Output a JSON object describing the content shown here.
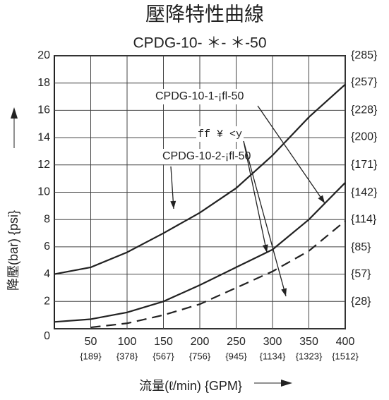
{
  "chart_data": {
    "type": "line",
    "title": "壓降特性曲線",
    "subtitle": "CPDG-10- ＊- ＊-50",
    "y_label": "降壓(bar) {psi}",
    "x_label": "流量(ℓ/min) {GPM}",
    "x": [
      0,
      50,
      100,
      150,
      200,
      250,
      300,
      350,
      400
    ],
    "series": [
      {
        "name": "CPDG-10-2-¡fl-50",
        "color": "#222222",
        "dash": false,
        "values": [
          4,
          4.5,
          5.6,
          7,
          8.5,
          10.3,
          12.7,
          15.5,
          17.9
        ]
      },
      {
        "name": "CPDG-10-1-¡fl-50",
        "color": "#222222",
        "dash": false,
        "values": [
          0.5,
          0.7,
          1.2,
          2,
          3.2,
          4.5,
          5.8,
          8,
          10.7
        ]
      },
      {
        "name": "ff ¥ <y",
        "color": "#222222",
        "dash": true,
        "values": [
          null,
          0.1,
          0.4,
          1,
          1.8,
          3,
          4.2,
          5.7,
          7.9
        ]
      }
    ],
    "xlim": [
      0,
      400
    ],
    "xticks": [
      50,
      100,
      150,
      200,
      250,
      300,
      350,
      400
    ],
    "x2lim": [
      0,
      1512
    ],
    "x2ticks": [
      {
        "value": 189,
        "label": "{189}"
      },
      {
        "value": 378,
        "label": "{378}"
      },
      {
        "value": 567,
        "label": "{567}"
      },
      {
        "value": 756,
        "label": "{756}"
      },
      {
        "value": 945,
        "label": "{945}"
      },
      {
        "value": 1134,
        "label": "{1134}"
      },
      {
        "value": 1323,
        "label": "{1323}"
      },
      {
        "value": 1512,
        "label": "{1512}"
      }
    ],
    "ylim": [
      0,
      20
    ],
    "yticks": [
      0,
      2,
      4,
      6,
      8,
      10,
      12,
      14,
      16,
      18,
      20
    ],
    "y2lim": [
      0,
      285
    ],
    "y2ticks": [
      {
        "value": 28,
        "label": "{28}"
      },
      {
        "value": 57,
        "label": "{57}"
      },
      {
        "value": 85,
        "label": "{85}"
      },
      {
        "value": 114,
        "label": "{114}"
      },
      {
        "value": 142,
        "label": "{142}"
      },
      {
        "value": 171,
        "label": "{171}"
      },
      {
        "value": 200,
        "label": "{200}"
      },
      {
        "value": 228,
        "label": "{228}"
      },
      {
        "value": 257,
        "label": "{257}"
      },
      {
        "value": 285,
        "label": "{285}"
      }
    ],
    "grid": true
  }
}
